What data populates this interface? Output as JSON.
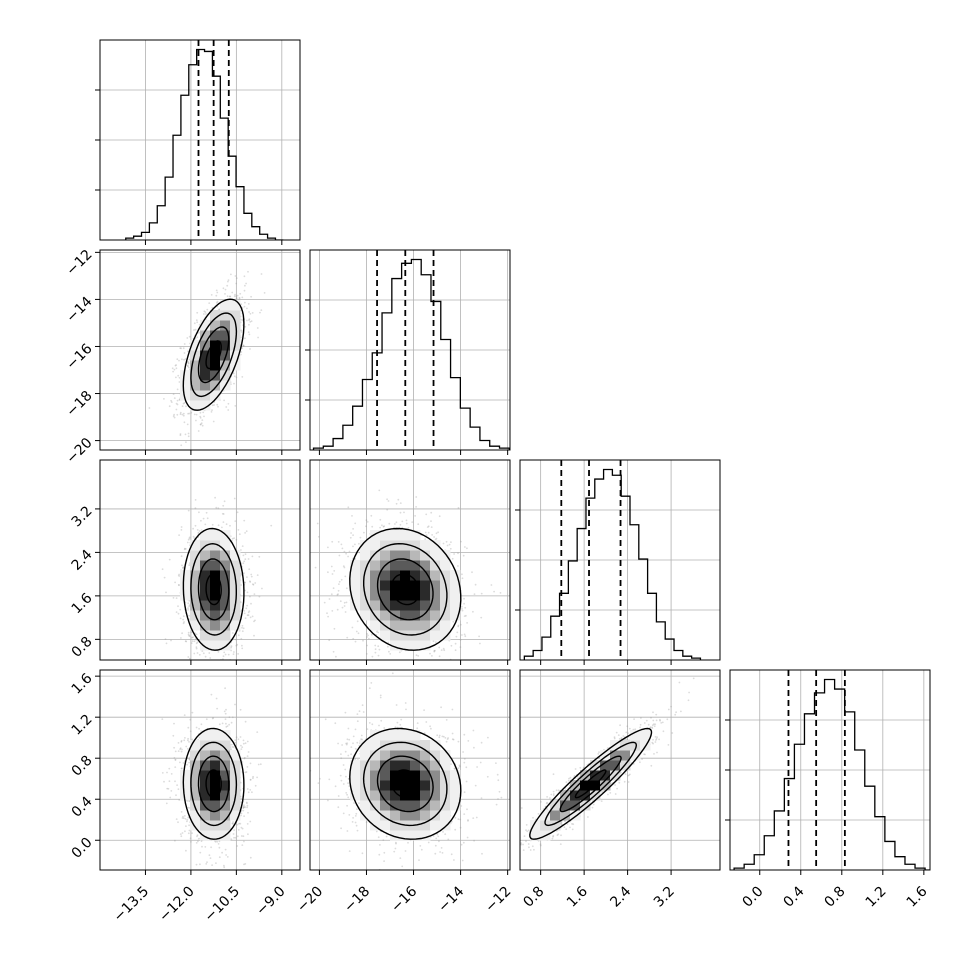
{
  "chart_data": {
    "type": "corner",
    "parameters": 4,
    "axes": [
      {
        "range": [
          -15.0,
          -8.4
        ],
        "ticks": [
          "-13.5",
          "-12.0",
          "-10.5",
          "-9.0"
        ],
        "tick_values": [
          -13.5,
          -12.0,
          -10.5,
          -9.0
        ]
      },
      {
        "range": [
          -20.4,
          -11.9
        ],
        "ticks": [
          "-20",
          "-18",
          "-16",
          "-14",
          "-12"
        ],
        "tick_values": [
          -20,
          -18,
          -16,
          -14,
          -12
        ]
      },
      {
        "range": [
          0.42,
          4.1
        ],
        "ticks": [
          "0.8",
          "1.6",
          "2.4",
          "3.2"
        ],
        "tick_values": [
          0.8,
          1.6,
          2.4,
          3.2
        ]
      },
      {
        "range": [
          -0.29,
          1.66
        ],
        "ticks": [
          "0.0",
          "0.4",
          "0.8",
          "1.2",
          "1.6"
        ],
        "tick_values": [
          0.0,
          0.4,
          0.8,
          1.2,
          1.6
        ]
      }
    ],
    "histograms": [
      {
        "edges_start": -14.15,
        "bin_width": 0.26,
        "counts": [
          1,
          2,
          4,
          9,
          18,
          33,
          55,
          76,
          92,
          100,
          99,
          86,
          64,
          44,
          28,
          14,
          7,
          3,
          1,
          0
        ],
        "quantiles": [
          -11.75,
          -11.25,
          -10.75
        ]
      },
      {
        "edges_start": -20.25,
        "bin_width": 0.416,
        "counts": [
          1,
          2,
          6,
          13,
          23,
          37,
          51,
          72,
          90,
          98,
          100,
          92,
          78,
          58,
          38,
          22,
          12,
          5,
          2,
          1
        ],
        "quantiles": [
          -17.55,
          -16.35,
          -15.15
        ]
      },
      {
        "edges_start": 0.5,
        "bin_width": 0.162,
        "counts": [
          2,
          5,
          12,
          23,
          35,
          52,
          69,
          85,
          95,
          100,
          97,
          86,
          71,
          53,
          35,
          20,
          11,
          5,
          2,
          1
        ],
        "quantiles": [
          1.18,
          1.69,
          2.27
        ]
      },
      {
        "edges_start": -0.25,
        "bin_width": 0.098,
        "counts": [
          1,
          3,
          8,
          18,
          31,
          48,
          66,
          82,
          93,
          100,
          95,
          83,
          63,
          44,
          28,
          15,
          7,
          3,
          1,
          0
        ],
        "quantiles": [
          0.28,
          0.55,
          0.83
        ]
      }
    ],
    "distribution": {
      "mean": [
        -11.25,
        -16.35,
        1.72,
        0.55
      ],
      "std": [
        0.5,
        1.18,
        0.56,
        0.27
      ],
      "correlation": [
        [
          1.0,
          0.55,
          -0.05,
          -0.02
        ],
        [
          0.55,
          1.0,
          -0.14,
          -0.12
        ],
        [
          -0.05,
          -0.14,
          1.0,
          0.93
        ],
        [
          -0.02,
          -0.12,
          0.93,
          1.0
        ]
      ]
    },
    "contour_levels_sigma": [
      0.5,
      1.0,
      1.5,
      2.0
    ],
    "grid": true,
    "median_line_style": "dashed"
  }
}
